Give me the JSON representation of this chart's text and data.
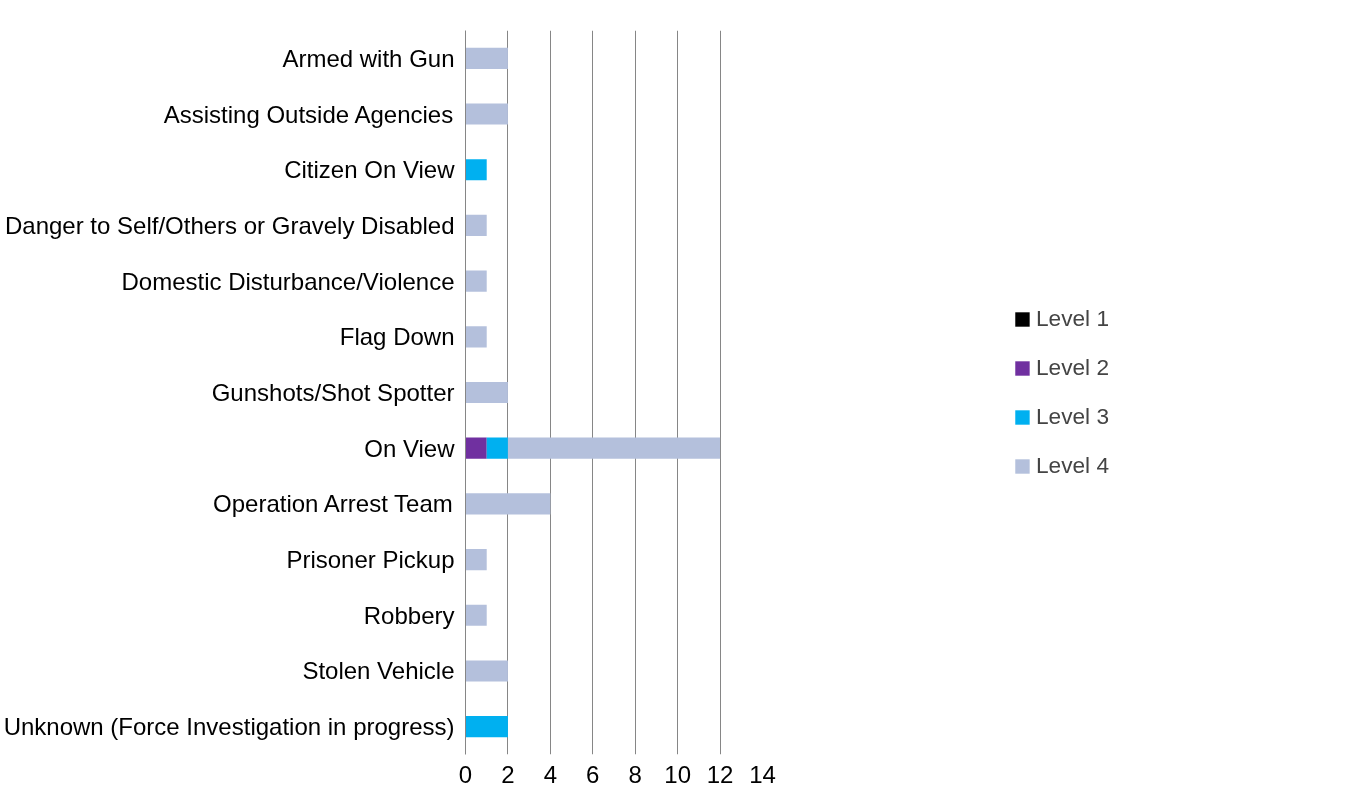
{
  "chart_data": {
    "type": "bar",
    "orientation": "horizontal",
    "stacked": true,
    "categories": [
      "Armed with Gun",
      "Assisting Outside Agencies",
      "Citizen On View",
      "Danger to Self/Others or Gravely Disabled",
      "Domestic Disturbance/Violence",
      "Flag Down",
      "Gunshots/Shot Spotter",
      "On View",
      "Operation Arrest Team",
      "Prisoner Pickup",
      "Robbery",
      "Stolen Vehicle",
      "Unknown (Force Investigation in progress)"
    ],
    "series": [
      {
        "name": "Level 1",
        "color": "#000000",
        "values": [
          0,
          0,
          0,
          0,
          0,
          0,
          0,
          0,
          0,
          0,
          0,
          0,
          0
        ]
      },
      {
        "name": "Level 2",
        "color": "#7030a0",
        "values": [
          0,
          0,
          0,
          0,
          0,
          0,
          0,
          1,
          0,
          0,
          0,
          0,
          0
        ]
      },
      {
        "name": "Level 3",
        "color": "#00b0f0",
        "values": [
          0,
          0,
          1,
          0,
          0,
          0,
          0,
          1,
          0,
          0,
          0,
          0,
          2
        ]
      },
      {
        "name": "Level 4",
        "color": "#b4c0dc",
        "values": [
          2,
          2,
          0,
          1,
          1,
          1,
          2,
          10,
          4,
          1,
          1,
          2,
          0
        ]
      }
    ],
    "xlim": [
      0,
      14
    ],
    "xticks": [
      0,
      2,
      4,
      6,
      8,
      10,
      12,
      14
    ],
    "grid": "x",
    "legend": "right"
  }
}
